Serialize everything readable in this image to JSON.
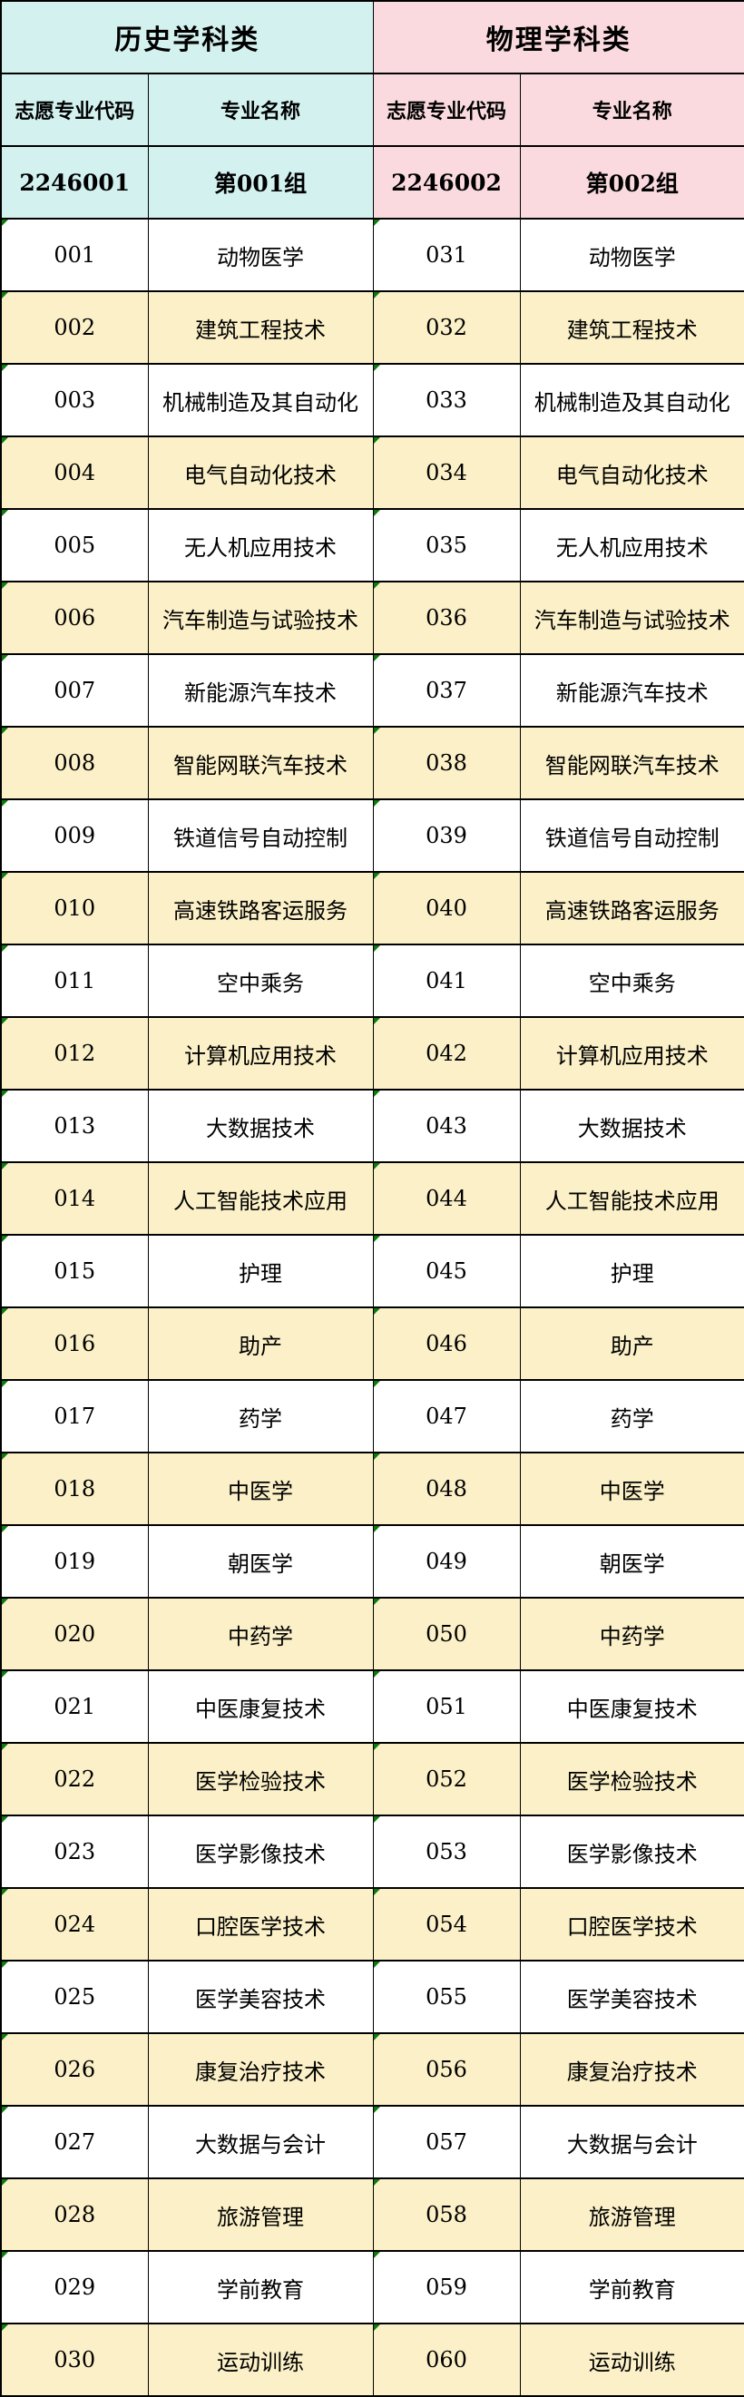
{
  "colors": {
    "history_bg": "#d2f1ef",
    "physics_bg": "#fadade",
    "row_alt_bg": "#fbf0c7",
    "row_bg": "#ffffff",
    "marker_green": "#0e7a0e",
    "grid": "#000000"
  },
  "table": {
    "history": {
      "title": "历史学科类",
      "col_code": "志愿专业代码",
      "col_name": "专业名称",
      "group_code": "2246001",
      "group_name": "第001组"
    },
    "physics": {
      "title": "物理学科类",
      "col_code": "志愿专业代码",
      "col_name": "专业名称",
      "group_code": "2246002",
      "group_name": "第002组"
    },
    "rows": [
      {
        "h_code": "001",
        "h_name": "动物医学",
        "p_code": "031",
        "p_name": "动物医学"
      },
      {
        "h_code": "002",
        "h_name": "建筑工程技术",
        "p_code": "032",
        "p_name": "建筑工程技术"
      },
      {
        "h_code": "003",
        "h_name": "机械制造及其自动化",
        "p_code": "033",
        "p_name": "机械制造及其自动化"
      },
      {
        "h_code": "004",
        "h_name": "电气自动化技术",
        "p_code": "034",
        "p_name": "电气自动化技术"
      },
      {
        "h_code": "005",
        "h_name": "无人机应用技术",
        "p_code": "035",
        "p_name": "无人机应用技术"
      },
      {
        "h_code": "006",
        "h_name": "汽车制造与试验技术",
        "p_code": "036",
        "p_name": "汽车制造与试验技术"
      },
      {
        "h_code": "007",
        "h_name": "新能源汽车技术",
        "p_code": "037",
        "p_name": "新能源汽车技术"
      },
      {
        "h_code": "008",
        "h_name": "智能网联汽车技术",
        "p_code": "038",
        "p_name": "智能网联汽车技术"
      },
      {
        "h_code": "009",
        "h_name": "铁道信号自动控制",
        "p_code": "039",
        "p_name": "铁道信号自动控制"
      },
      {
        "h_code": "010",
        "h_name": "高速铁路客运服务",
        "p_code": "040",
        "p_name": "高速铁路客运服务"
      },
      {
        "h_code": "011",
        "h_name": "空中乘务",
        "p_code": "041",
        "p_name": "空中乘务"
      },
      {
        "h_code": "012",
        "h_name": "计算机应用技术",
        "p_code": "042",
        "p_name": "计算机应用技术"
      },
      {
        "h_code": "013",
        "h_name": "大数据技术",
        "p_code": "043",
        "p_name": "大数据技术"
      },
      {
        "h_code": "014",
        "h_name": "人工智能技术应用",
        "p_code": "044",
        "p_name": "人工智能技术应用"
      },
      {
        "h_code": "015",
        "h_name": "护理",
        "p_code": "045",
        "p_name": "护理"
      },
      {
        "h_code": "016",
        "h_name": "助产",
        "p_code": "046",
        "p_name": "助产"
      },
      {
        "h_code": "017",
        "h_name": "药学",
        "p_code": "047",
        "p_name": "药学"
      },
      {
        "h_code": "018",
        "h_name": "中医学",
        "p_code": "048",
        "p_name": "中医学"
      },
      {
        "h_code": "019",
        "h_name": "朝医学",
        "p_code": "049",
        "p_name": "朝医学"
      },
      {
        "h_code": "020",
        "h_name": "中药学",
        "p_code": "050",
        "p_name": "中药学"
      },
      {
        "h_code": "021",
        "h_name": "中医康复技术",
        "p_code": "051",
        "p_name": "中医康复技术"
      },
      {
        "h_code": "022",
        "h_name": "医学检验技术",
        "p_code": "052",
        "p_name": "医学检验技术"
      },
      {
        "h_code": "023",
        "h_name": "医学影像技术",
        "p_code": "053",
        "p_name": "医学影像技术"
      },
      {
        "h_code": "024",
        "h_name": "口腔医学技术",
        "p_code": "054",
        "p_name": "口腔医学技术"
      },
      {
        "h_code": "025",
        "h_name": "医学美容技术",
        "p_code": "055",
        "p_name": "医学美容技术"
      },
      {
        "h_code": "026",
        "h_name": "康复治疗技术",
        "p_code": "056",
        "p_name": "康复治疗技术"
      },
      {
        "h_code": "027",
        "h_name": "大数据与会计",
        "p_code": "057",
        "p_name": "大数据与会计"
      },
      {
        "h_code": "028",
        "h_name": "旅游管理",
        "p_code": "058",
        "p_name": "旅游管理"
      },
      {
        "h_code": "029",
        "h_name": "学前教育",
        "p_code": "059",
        "p_name": "学前教育"
      },
      {
        "h_code": "030",
        "h_name": "运动训练",
        "p_code": "060",
        "p_name": "运动训练"
      }
    ]
  }
}
